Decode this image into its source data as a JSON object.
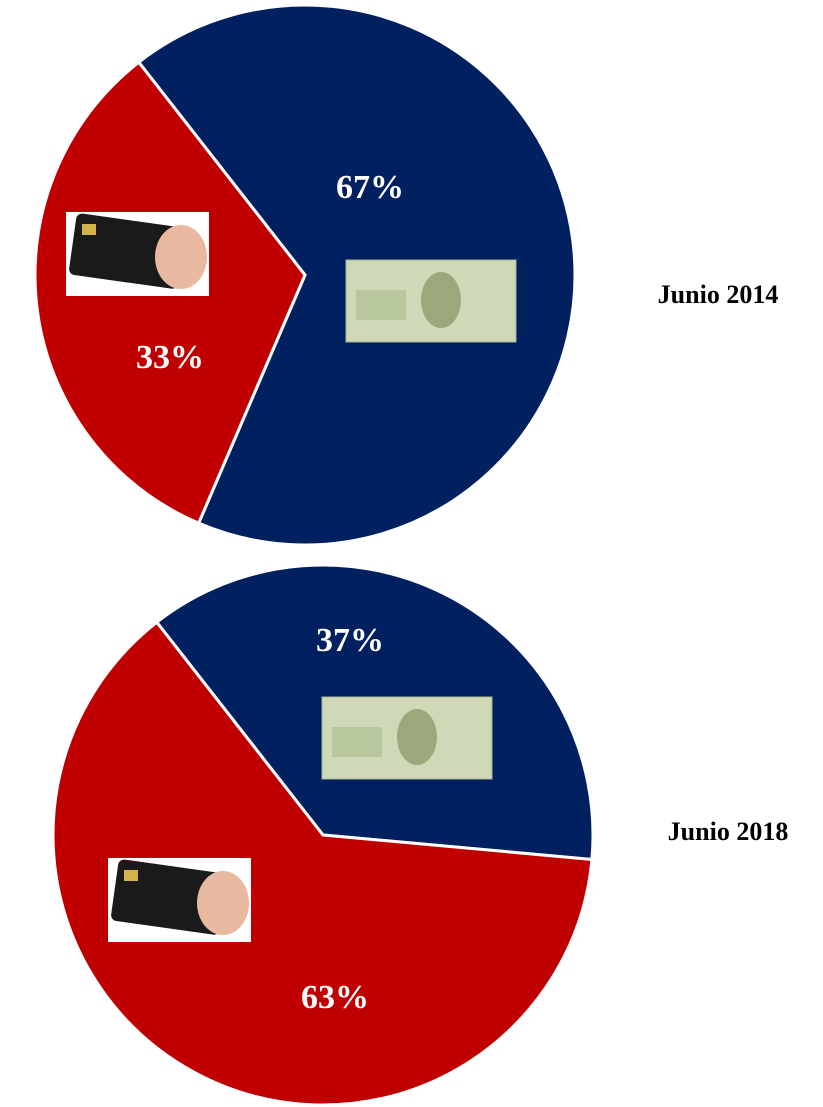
{
  "chart_data": [
    {
      "type": "pie",
      "title": "Junio 2014",
      "values": [
        67,
        33
      ],
      "value_labels": [
        "67%",
        "33%"
      ],
      "colors": [
        "#002060",
        "#c00000"
      ]
    },
    {
      "type": "pie",
      "title": "Junio 2018",
      "values": [
        37,
        63
      ],
      "value_labels": [
        "37%",
        "63%"
      ],
      "colors": [
        "#002060",
        "#c00000"
      ]
    }
  ]
}
